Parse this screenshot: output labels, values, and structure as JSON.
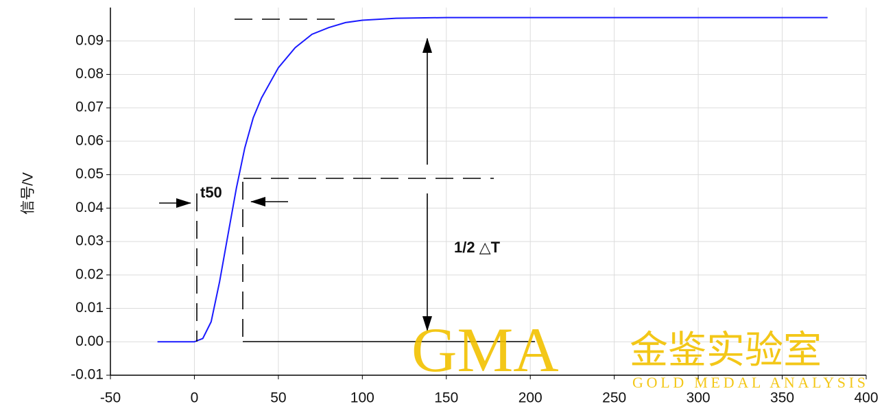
{
  "chart_data": {
    "type": "line",
    "y_label": "信号/V",
    "x": [
      -22,
      -10,
      0,
      5,
      10,
      15,
      20,
      25,
      30,
      35,
      40,
      50,
      60,
      70,
      80,
      90,
      100,
      120,
      150,
      200,
      250,
      300,
      350,
      377
    ],
    "series": [
      {
        "color": "#1a1aff",
        "values": [
          0,
          0,
          0,
          0.001,
          0.006,
          0.018,
          0.032,
          0.046,
          0.058,
          0.067,
          0.073,
          0.082,
          0.088,
          0.092,
          0.094,
          0.0955,
          0.0962,
          0.0968,
          0.097,
          0.097,
          0.097,
          0.097,
          0.097,
          0.097
        ]
      }
    ],
    "xlim": [
      -50,
      400
    ],
    "xticks": [
      -50,
      0,
      50,
      100,
      150,
      200,
      250,
      300,
      350,
      400
    ],
    "ylim": [
      -0.01,
      0.1
    ],
    "yticks": [
      {
        "value": -0.01,
        "label": "-0.01"
      },
      {
        "value": 0,
        "label": "0.00"
      },
      {
        "value": 0.01,
        "label": "0.01"
      },
      {
        "value": 0.02,
        "label": "0.02"
      },
      {
        "value": 0.03,
        "label": "0.03"
      },
      {
        "value": 0.04,
        "label": "0.04"
      },
      {
        "value": 0.05,
        "label": "0.05"
      },
      {
        "value": 0.06,
        "label": "0.06"
      },
      {
        "value": 0.07,
        "label": "0.07"
      },
      {
        "value": 0.08,
        "label": "0.08"
      },
      {
        "value": 0.09,
        "label": "0.09"
      }
    ],
    "grid": true,
    "annotations": {
      "t50": "t50",
      "delta": "1/2 △T"
    },
    "watermark": {
      "logo": "GMA",
      "name": "金鉴实验室",
      "sub": "GOLD MEDAL ANALYSIS"
    }
  }
}
